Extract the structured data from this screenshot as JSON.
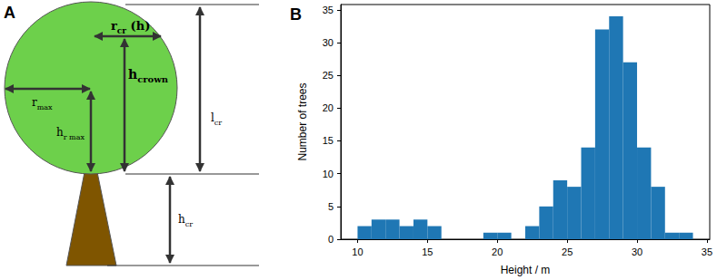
{
  "chart_data": {
    "type": "histogram",
    "title": "B",
    "x_label": "Height / m",
    "y_label": "Number of trees",
    "bins": [
      10,
      11,
      12,
      13,
      14,
      15,
      16,
      17,
      18,
      19,
      20,
      21,
      22,
      23,
      24,
      25,
      26,
      27,
      28,
      29,
      30,
      31,
      32,
      33,
      34
    ],
    "values": [
      2,
      3,
      3,
      2,
      3,
      2,
      0,
      0,
      0,
      1,
      1,
      0,
      2,
      5,
      9,
      8,
      14,
      32,
      34,
      27,
      14,
      8,
      1,
      1
    ],
    "color": "#1f77b4",
    "xlim": [
      8.8,
      35.2
    ],
    "xticks": [
      10,
      15,
      20,
      25,
      30,
      35
    ],
    "ylim": [
      0,
      35.8
    ],
    "yticks": [
      0,
      5,
      10,
      15,
      20,
      25,
      30,
      35
    ],
    "grid": false
  },
  "diagram": {
    "title": "A",
    "labels": {
      "r_cr_h": {
        "text": "r",
        "sub": "cr",
        "suffix": " (h)"
      },
      "h_crown": {
        "text": "h",
        "sub": "crown"
      },
      "r_max": {
        "text": "r",
        "sub": "max"
      },
      "h_r_max": {
        "text": "h",
        "sub": "r max"
      },
      "l_cr": {
        "text": "l",
        "sub": "cr"
      },
      "h_cr": {
        "text": "h",
        "sub": "cr"
      }
    }
  }
}
